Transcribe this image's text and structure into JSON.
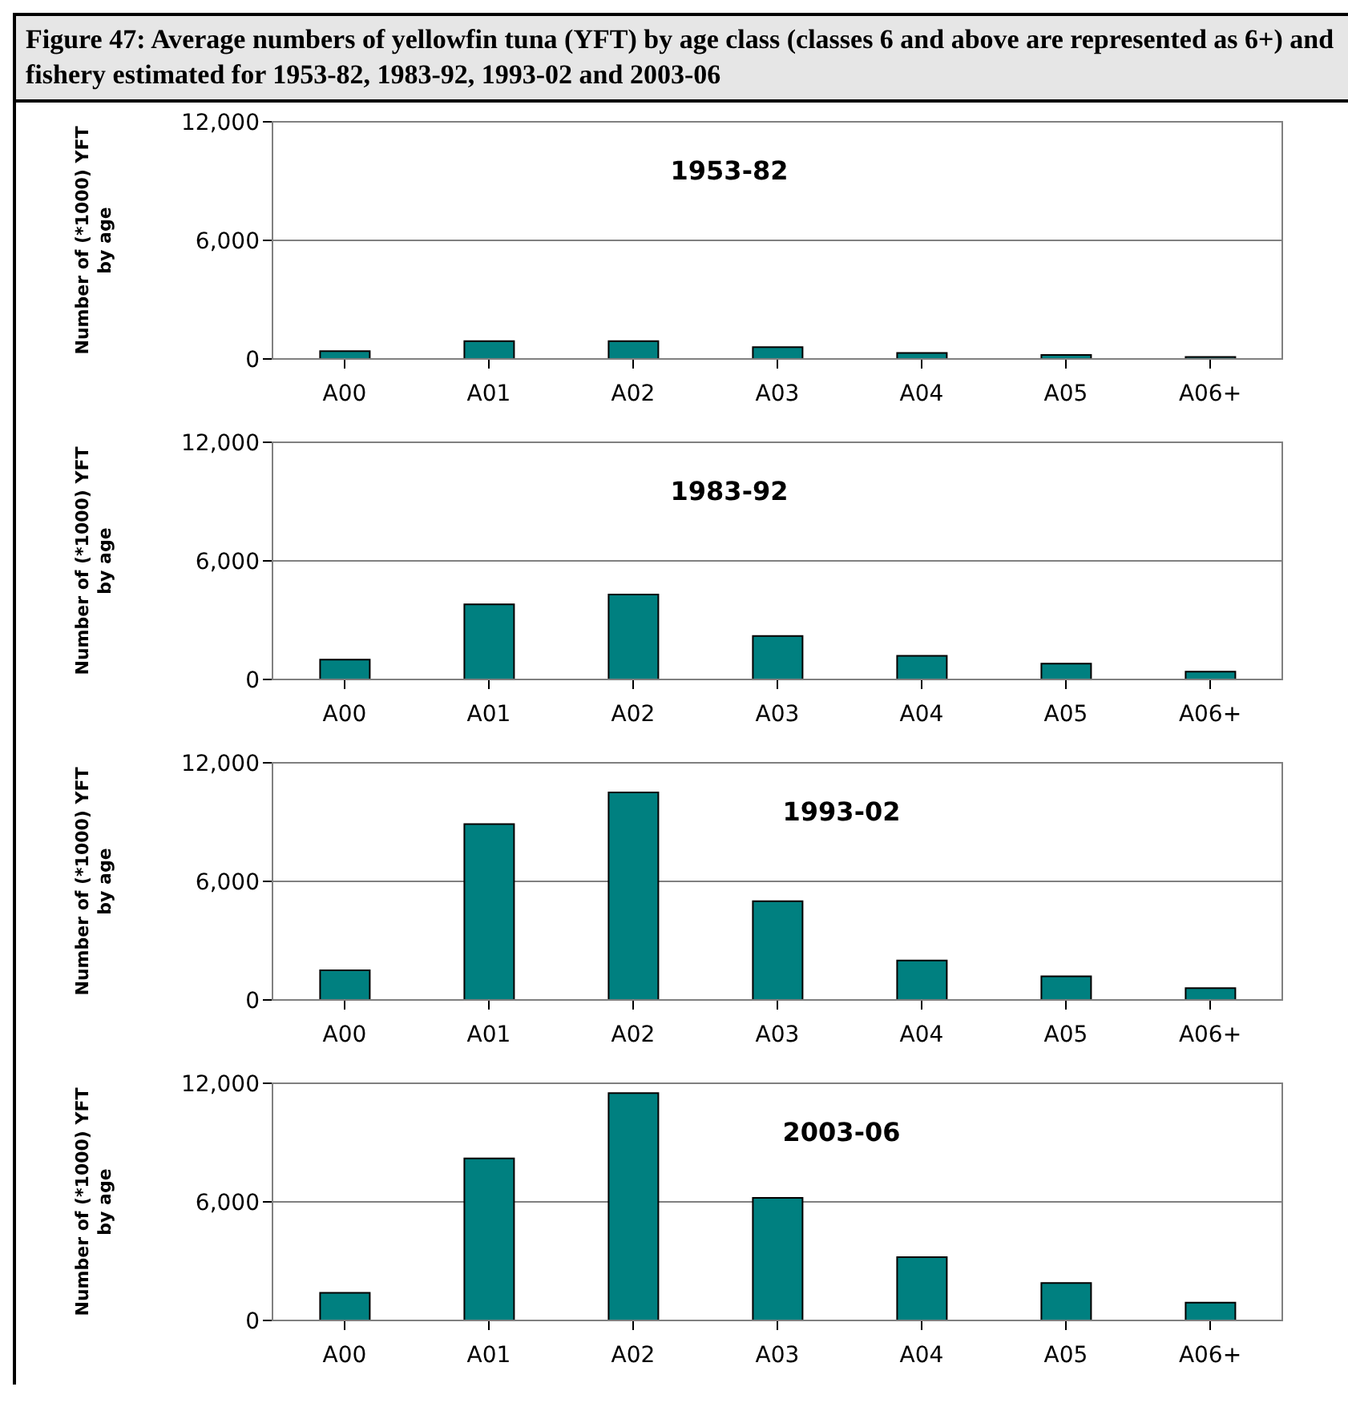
{
  "chart_data": [
    {
      "type": "bar",
      "title": "Figure 47: Average numbers of  yellowfin tuna (YFT) by age class (classes 6 and above are represented as 6+)  and fishery estimated for 1953-82, 1983-92, 1993-02 and 2003-06",
      "subtitle": "1953-82",
      "ylabel": "Number of (*1000) YFT by age",
      "categories": [
        "A00",
        "A01",
        "A02",
        "A03",
        "A04",
        "A05",
        "A06+"
      ],
      "values": [
        400,
        900,
        900,
        600,
        300,
        200,
        100
      ],
      "color": "#008080",
      "ylim": [
        0,
        12000
      ],
      "yticks": [
        {
          "value": 0,
          "label": "0"
        },
        {
          "value": 6000,
          "label": "6,000"
        },
        {
          "value": 12000,
          "label": "12,000"
        }
      ],
      "grid": "y"
    },
    {
      "type": "bar",
      "subtitle": "1983-92",
      "ylabel": "Number of (*1000) YFT by age",
      "categories": [
        "A00",
        "A01",
        "A02",
        "A03",
        "A04",
        "A05",
        "A06+"
      ],
      "values": [
        1000,
        3800,
        4300,
        2200,
        1200,
        800,
        400
      ],
      "color": "#008080",
      "ylim": [
        0,
        12000
      ],
      "yticks": [
        {
          "value": 0,
          "label": "0"
        },
        {
          "value": 6000,
          "label": "6,000"
        },
        {
          "value": 12000,
          "label": "12,000"
        }
      ],
      "grid": "y"
    },
    {
      "type": "bar",
      "subtitle": "1993-02",
      "ylabel": "Number of (*1000) YFT by age",
      "categories": [
        "A00",
        "A01",
        "A02",
        "A03",
        "A04",
        "A05",
        "A06+"
      ],
      "values": [
        1500,
        8900,
        10500,
        5000,
        2000,
        1200,
        600
      ],
      "color": "#008080",
      "ylim": [
        0,
        12000
      ],
      "yticks": [
        {
          "value": 0,
          "label": "0"
        },
        {
          "value": 6000,
          "label": "6,000"
        },
        {
          "value": 12000,
          "label": "12,000"
        }
      ],
      "grid": "y"
    },
    {
      "type": "bar",
      "subtitle": "2003-06",
      "ylabel": "Number of (*1000) YFT by age",
      "categories": [
        "A00",
        "A01",
        "A02",
        "A03",
        "A04",
        "A05",
        "A06+"
      ],
      "values": [
        1400,
        8200,
        11500,
        6200,
        3200,
        1900,
        900
      ],
      "color": "#008080",
      "ylim": [
        0,
        12000
      ],
      "yticks": [
        {
          "value": 0,
          "label": "0"
        },
        {
          "value": 6000,
          "label": "6,000"
        },
        {
          "value": 12000,
          "label": "12,000"
        }
      ],
      "grid": "y"
    }
  ]
}
